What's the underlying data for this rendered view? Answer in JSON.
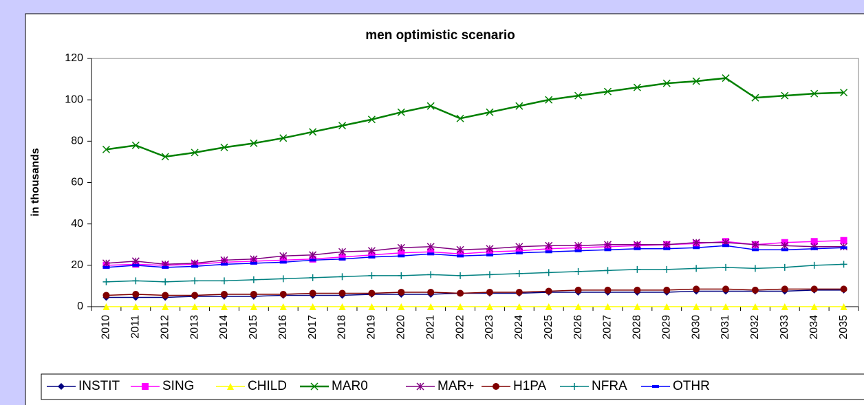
{
  "chart_data": {
    "type": "line",
    "title": "men optimistic scenario",
    "y_label": "in thousands",
    "categories": [
      "2010",
      "2011",
      "2012",
      "2013",
      "2014",
      "2015",
      "2016",
      "2017",
      "2018",
      "2019",
      "2020",
      "2021",
      "2022",
      "2023",
      "2024",
      "2025",
      "2026",
      "2027",
      "2028",
      "2029",
      "2030",
      "2031",
      "2032",
      "2033",
      "2034",
      "2035"
    ],
    "ylim": [
      0,
      120
    ],
    "yticks": [
      0,
      20,
      40,
      60,
      80,
      100,
      120
    ],
    "grid": false,
    "legend": "bottom",
    "series": [
      {
        "name": "INSTIT",
        "color": "#000080",
        "marker": "diamond",
        "values": [
          4.5,
          4.5,
          4.5,
          5,
          5,
          5,
          5.5,
          5.5,
          5.5,
          6,
          6,
          6,
          6.5,
          6.5,
          6.5,
          7,
          7,
          7,
          7,
          7,
          7.5,
          7.5,
          7.5,
          7.5,
          8,
          8
        ]
      },
      {
        "name": "SING",
        "color": "#ff00ff",
        "marker": "square",
        "values": [
          20,
          20.5,
          20,
          20.5,
          21.5,
          22,
          22.5,
          23,
          24,
          25,
          26,
          26.5,
          25.5,
          26.5,
          27,
          28,
          28.5,
          29,
          29.5,
          30,
          30.5,
          31.5,
          30,
          31,
          31.5,
          32
        ]
      },
      {
        "name": "CHILD",
        "color": "#ffff00",
        "marker": "triangle",
        "values": [
          0,
          0,
          0,
          0,
          0,
          0,
          0,
          0,
          0,
          0,
          0,
          0,
          0,
          0,
          0,
          0,
          0,
          0,
          0,
          0,
          0,
          0,
          0,
          0,
          0,
          0
        ]
      },
      {
        "name": "MAR0",
        "color": "#008000",
        "marker": "x",
        "values": [
          76,
          78,
          72.5,
          74.5,
          77,
          79,
          81.5,
          84.5,
          87.5,
          90.5,
          94,
          97,
          91,
          94,
          97,
          100,
          102,
          104,
          106,
          108,
          109,
          110.5,
          101,
          102,
          103,
          103.5
        ]
      },
      {
        "name": "MAR+",
        "color": "#800080",
        "marker": "star",
        "values": [
          21,
          22,
          20.5,
          21,
          22.5,
          23,
          24.5,
          25,
          26.5,
          27,
          28.5,
          29,
          27.5,
          28,
          29,
          29.5,
          29.5,
          30,
          30,
          30,
          31,
          31,
          30,
          29.5,
          29,
          29
        ]
      },
      {
        "name": "H1PA",
        "color": "#800000",
        "marker": "circle",
        "values": [
          5.5,
          6,
          5.5,
          5.5,
          6,
          6,
          6,
          6.5,
          6.5,
          6.5,
          7,
          7,
          6.5,
          7,
          7,
          7.5,
          8,
          8,
          8,
          8,
          8.5,
          8.5,
          8,
          8.5,
          8.5,
          8.5
        ]
      },
      {
        "name": "NFRA",
        "color": "#008080",
        "marker": "plus",
        "values": [
          12,
          12.5,
          12,
          12.5,
          12.5,
          13,
          13.5,
          14,
          14.5,
          15,
          15,
          15.5,
          15,
          15.5,
          16,
          16.5,
          17,
          17.5,
          18,
          18,
          18.5,
          19,
          18.5,
          19,
          20,
          20.5
        ]
      },
      {
        "name": "OTHR",
        "color": "#0000ff",
        "marker": "dash",
        "values": [
          19,
          20,
          19,
          19.5,
          20.5,
          21,
          21.5,
          22.5,
          23,
          24,
          24.5,
          25.5,
          24.5,
          25,
          26,
          26.5,
          27,
          27.5,
          28,
          28,
          28.5,
          29.5,
          27.5,
          27.5,
          28,
          28.5
        ]
      }
    ]
  }
}
